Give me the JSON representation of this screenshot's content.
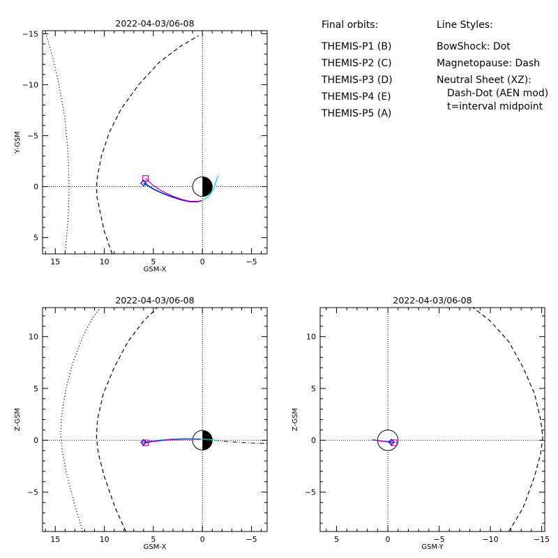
{
  "legend": {
    "orbits_title": "Final orbits:",
    "probes": [
      {
        "label": "THEMIS-P1 (B)",
        "color": "#ff0000"
      },
      {
        "label": "THEMIS-P2 (C)",
        "color": "#00dd00"
      },
      {
        "label": "THEMIS-P3 (D)",
        "color": "#00dddd"
      },
      {
        "label": "THEMIS-P4 (E)",
        "color": "#0000cc"
      },
      {
        "label": "THEMIS-P5 (A)",
        "color": "#cc00cc"
      }
    ],
    "styles_title": "Line Styles:",
    "styles": [
      "BowShock: Dot",
      "Magnetopause: Dash",
      "Neutral Sheet (XZ):",
      "Dash-Dot (AEN mod)",
      "t=interval midpoint"
    ]
  },
  "chart_data": [
    {
      "type": "line",
      "title": "2022-04-03/06-08",
      "xlabel": "GSM-X",
      "ylabel": "Y-GSM",
      "xlim": [
        16.3,
        -6.6
      ],
      "ylim": [
        6.6,
        -15.3
      ],
      "x_ticks": [
        15,
        10,
        5,
        0,
        -5
      ],
      "y_ticks": [
        5,
        0,
        -5,
        -10,
        -15
      ],
      "bow_shock": {
        "x": [
          14.0,
          13.8,
          13.65,
          13.6,
          13.65,
          13.8,
          14.0,
          14.4,
          14.8,
          15.3,
          15.9
        ],
        "y": [
          6.6,
          4.4,
          2.2,
          0,
          -2.2,
          -4.4,
          -6.6,
          -8.8,
          -10.8,
          -12.8,
          -14.8
        ]
      },
      "magnetopause": {
        "x": [
          9.2,
          10.0,
          10.5,
          10.75,
          10.8,
          10.7,
          10.3,
          9.5,
          8.3,
          6.5,
          4.4,
          2.2,
          0.4
        ],
        "y": [
          6.6,
          4.4,
          2.2,
          1.0,
          0,
          -1.0,
          -3.0,
          -5.3,
          -7.6,
          -10.0,
          -12.2,
          -13.8,
          -14.8
        ]
      },
      "series": [
        {
          "name": "THEMIS-P3 (D)",
          "color": "#00dddd",
          "x": [
            5.9,
            5.0,
            4.0,
            3.0,
            2.0,
            1.2,
            0.5,
            0.0,
            -0.6,
            -1.1,
            -1.6
          ],
          "y": [
            -0.4,
            0.2,
            0.65,
            0.98,
            1.3,
            1.48,
            1.5,
            1.38,
            1.0,
            0.3,
            -1.1
          ]
        },
        {
          "name": "THEMIS-P4 (E)",
          "color": "#0000cc",
          "x": [
            6.0,
            5.0,
            4.0,
            3.0,
            2.0,
            1.2,
            0.6,
            0.1
          ],
          "y": [
            -0.35,
            0.25,
            0.7,
            1.05,
            1.35,
            1.5,
            1.5,
            1.4
          ]
        },
        {
          "name": "THEMIS-P5 (A)",
          "color": "#cc00cc",
          "x": [
            5.8,
            5.0,
            4.0,
            3.0,
            2.0,
            1.2,
            0.5,
            0.0
          ],
          "y": [
            -0.8,
            -0.1,
            0.5,
            0.95,
            1.28,
            1.45,
            1.45,
            1.35
          ]
        }
      ],
      "markers": [
        {
          "shape": "square",
          "color": "#cc00cc",
          "x": 5.8,
          "y": -0.8
        },
        {
          "shape": "diamond",
          "color": "#0000cc",
          "x": 6.0,
          "y": -0.35
        }
      ]
    },
    {
      "type": "line",
      "title": "2022-04-03/06-08",
      "xlabel": "GSM-X",
      "ylabel": "Z-GSM",
      "xlim": [
        16.3,
        -6.6
      ],
      "ylim": [
        -8.8,
        12.8
      ],
      "x_ticks": [
        15,
        10,
        5,
        0,
        -5
      ],
      "y_ticks": [
        -5,
        0,
        5,
        10
      ],
      "bow_shock": {
        "x": [
          12.2,
          13.1,
          13.9,
          14.3,
          14.45,
          14.35,
          13.9,
          13.2,
          12.2,
          11.2,
          10.4
        ],
        "y": [
          -8.8,
          -6.0,
          -3.0,
          -1.0,
          0.5,
          2.5,
          5.0,
          7.5,
          10.0,
          11.8,
          12.8
        ]
      },
      "magnetopause": {
        "x": [
          7.8,
          8.9,
          10.0,
          10.6,
          10.8,
          10.7,
          10.1,
          9.0,
          7.6,
          6.0,
          4.6
        ],
        "y": [
          -8.8,
          -6.5,
          -3.5,
          -1.3,
          0.3,
          2.0,
          4.5,
          7.0,
          9.5,
          11.5,
          12.8
        ]
      },
      "neutral_sheet": {
        "x": [
          0.6,
          -1.0,
          -2.5,
          -4.0,
          -5.5,
          -6.6
        ],
        "y": [
          0.12,
          0.0,
          -0.12,
          -0.22,
          -0.28,
          -0.3
        ]
      },
      "series": [
        {
          "name": "THEMIS-P3 (D)",
          "color": "#00dddd",
          "x": [
            5.9,
            5.0,
            4.0,
            3.0,
            2.0,
            1.0,
            0.0,
            -1.0,
            -1.6
          ],
          "y": [
            -0.2,
            -0.05,
            0.05,
            0.12,
            0.15,
            0.15,
            0.12,
            0.05,
            -0.05
          ]
        },
        {
          "name": "THEMIS-P4 (E)",
          "color": "#0000cc",
          "x": [
            6.0,
            5.0,
            4.0,
            3.0,
            2.0,
            1.0,
            0.2
          ],
          "y": [
            -0.2,
            -0.1,
            0.0,
            0.08,
            0.12,
            0.12,
            0.1
          ]
        },
        {
          "name": "THEMIS-P5 (A)",
          "color": "#cc00cc",
          "x": [
            5.8,
            5.0,
            4.0,
            3.0,
            2.0,
            1.0,
            0.2
          ],
          "y": [
            -0.25,
            -0.12,
            -0.02,
            0.06,
            0.1,
            0.1,
            0.08
          ]
        }
      ],
      "markers": [
        {
          "shape": "square",
          "color": "#cc00cc",
          "x": 5.8,
          "y": -0.25
        },
        {
          "shape": "diamond",
          "color": "#0000cc",
          "x": 6.0,
          "y": -0.2
        }
      ]
    },
    {
      "type": "line",
      "title": "2022-04-03/06-08",
      "xlabel": "GSM-Y",
      "ylabel": "Z-GSM",
      "xlim": [
        6.6,
        -15.3
      ],
      "ylim": [
        -8.8,
        12.8
      ],
      "x_ticks": [
        5,
        0,
        -5,
        -10,
        -15
      ],
      "y_ticks": [
        -5,
        0,
        5,
        10
      ],
      "magnetopause": {
        "x": [
          -11.8,
          -13.2,
          -14.3,
          -14.9,
          -15.1,
          -14.9,
          -14.3,
          -13.2,
          -11.8,
          -10.0,
          -8.3
        ],
        "y": [
          -8.8,
          -6.5,
          -3.5,
          -1.3,
          0.3,
          2.0,
          4.5,
          7.0,
          9.5,
          11.5,
          12.8
        ]
      },
      "series": [
        {
          "name": "THEMIS-P3 (D)",
          "color": "#00dddd",
          "x": [
            1.1,
            0.6,
            0.0,
            -0.4,
            -0.8
          ],
          "y": [
            0.0,
            -0.05,
            -0.1,
            -0.15,
            -0.2
          ]
        },
        {
          "name": "THEMIS-P4 (E)",
          "color": "#0000cc",
          "x": [
            1.5,
            1.0,
            0.5,
            0.0,
            -0.35
          ],
          "y": [
            0.05,
            -0.02,
            -0.08,
            -0.13,
            -0.18
          ]
        },
        {
          "name": "THEMIS-P5 (A)",
          "color": "#cc00cc",
          "x": [
            1.3,
            0.8,
            0.3,
            -0.2,
            -0.6
          ],
          "y": [
            0.0,
            -0.06,
            -0.12,
            -0.18,
            -0.24
          ]
        }
      ],
      "markers": [
        {
          "shape": "square",
          "color": "#cc00cc",
          "x": -0.6,
          "y": -0.24
        },
        {
          "shape": "diamond",
          "color": "#0000cc",
          "x": -0.35,
          "y": -0.18
        }
      ]
    }
  ]
}
